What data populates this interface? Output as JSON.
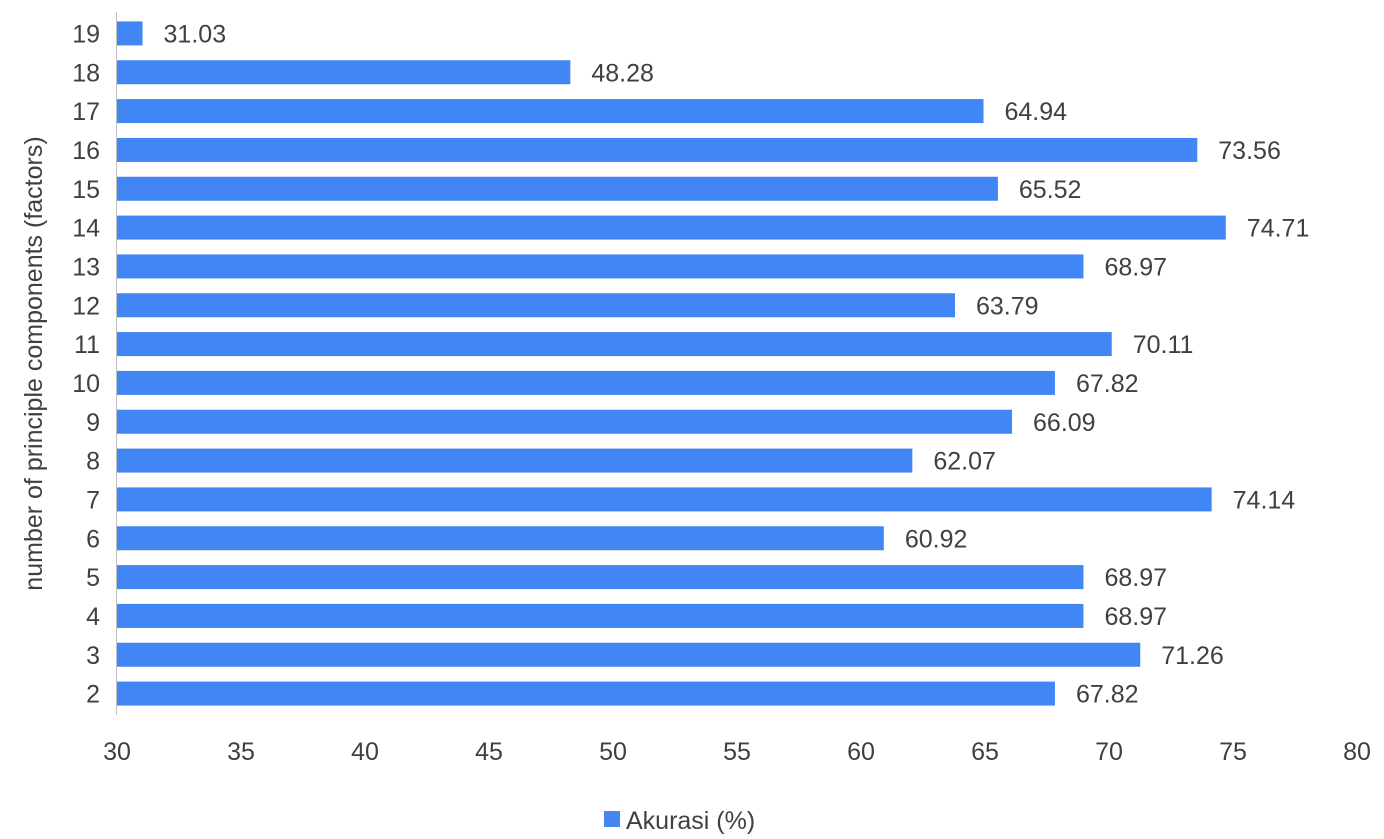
{
  "chart_data": {
    "type": "bar",
    "orientation": "horizontal",
    "title": "",
    "xlabel": "",
    "ylabel": "number of principle components (factors)",
    "categories": [
      "2",
      "3",
      "4",
      "5",
      "6",
      "7",
      "8",
      "9",
      "10",
      "11",
      "12",
      "13",
      "14",
      "15",
      "16",
      "17",
      "18",
      "19"
    ],
    "series": [
      {
        "name": "Akurasi (%)",
        "color": "#4285F4",
        "values": [
          67.82,
          71.26,
          68.97,
          68.97,
          60.92,
          74.14,
          62.07,
          66.09,
          67.82,
          70.11,
          63.79,
          68.97,
          74.71,
          65.52,
          73.56,
          64.94,
          48.28,
          31.03
        ]
      }
    ],
    "xlim": [
      30,
      80
    ],
    "xticks": [
      30,
      35,
      40,
      45,
      50,
      55,
      60,
      65,
      70,
      75,
      80
    ],
    "grid": false,
    "legend_position": "bottom-center",
    "data_labels": true
  }
}
